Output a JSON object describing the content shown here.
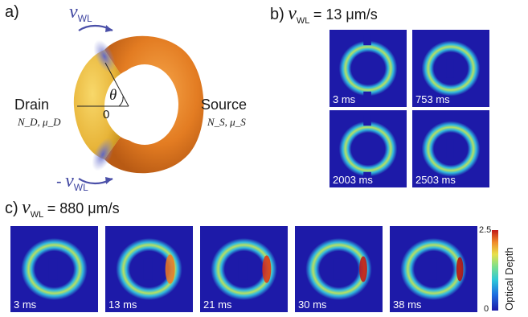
{
  "panel_a": {
    "label": "a)",
    "velocity_top": "v",
    "velocity_top_sub": "WL",
    "velocity_bottom_sign": "-",
    "velocity_bottom": "v",
    "velocity_bottom_sub": "WL",
    "theta": "θ",
    "zero": "0",
    "drain": "Drain",
    "drain_vars": "N_D, μ_D",
    "source": "Source",
    "source_vars": "N_S, μ_S"
  },
  "panel_b": {
    "label": "b)",
    "v": "v",
    "v_sub": "WL",
    "speed": "= 13 μm/s",
    "frames": [
      {
        "time": "3 ms",
        "gap": 0
      },
      {
        "time": "753 ms",
        "gap": 1
      },
      {
        "time": "2003 ms",
        "gap": 2
      },
      {
        "time": "2503 ms",
        "gap": 3
      }
    ]
  },
  "panel_c": {
    "label": "c)",
    "v": "v",
    "v_sub": "WL",
    "speed": "= 880 μm/s",
    "frames": [
      {
        "time": "3 ms"
      },
      {
        "time": "13 ms"
      },
      {
        "time": "21 ms"
      },
      {
        "time": "30 ms"
      },
      {
        "time": "38 ms"
      }
    ]
  },
  "colorbar": {
    "max": "2.5",
    "min": "0",
    "title": "Optical Depth"
  }
}
